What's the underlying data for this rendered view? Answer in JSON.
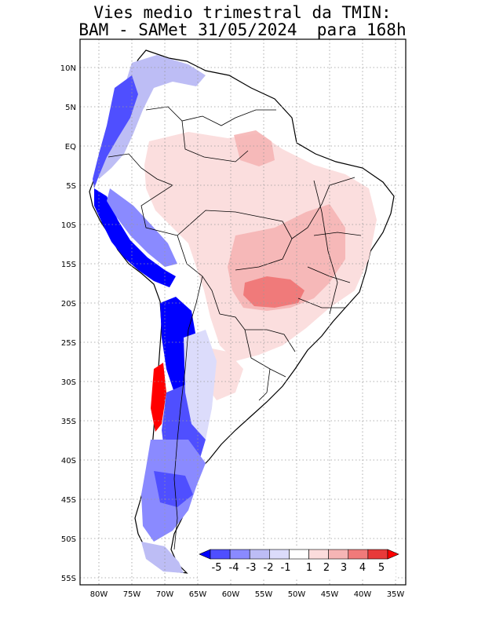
{
  "title": {
    "line1": "Vies medio trimestral da TMIN:",
    "line2": "BAM - SAMet 31/05/2024  para 168h"
  },
  "map": {
    "lon_range": [
      -83,
      -35
    ],
    "lat_range": [
      -56,
      13
    ],
    "lon_ticks": [
      "80W",
      "75W",
      "70W",
      "65W",
      "60W",
      "55W",
      "50W",
      "45W",
      "40W",
      "35W"
    ],
    "lat_ticks": [
      "10N",
      "5N",
      "EQ",
      "5S",
      "10S",
      "15S",
      "20S",
      "25S",
      "30S",
      "35S",
      "40S",
      "45S",
      "50S",
      "55S"
    ],
    "grid": "dotted"
  },
  "colorbar": {
    "labels": [
      "-5",
      "-4",
      "-3",
      "-2",
      "-1",
      "1",
      "2",
      "3",
      "4",
      "5"
    ],
    "colors": [
      "#0000ff",
      "#4f4fff",
      "#8a8aff",
      "#bdbdf5",
      "#dcdcfb",
      "#ffffff",
      "#fbdcdc",
      "#f5b5b5",
      "#f07a7a",
      "#e83a3a",
      "#ff0000"
    ]
  }
}
